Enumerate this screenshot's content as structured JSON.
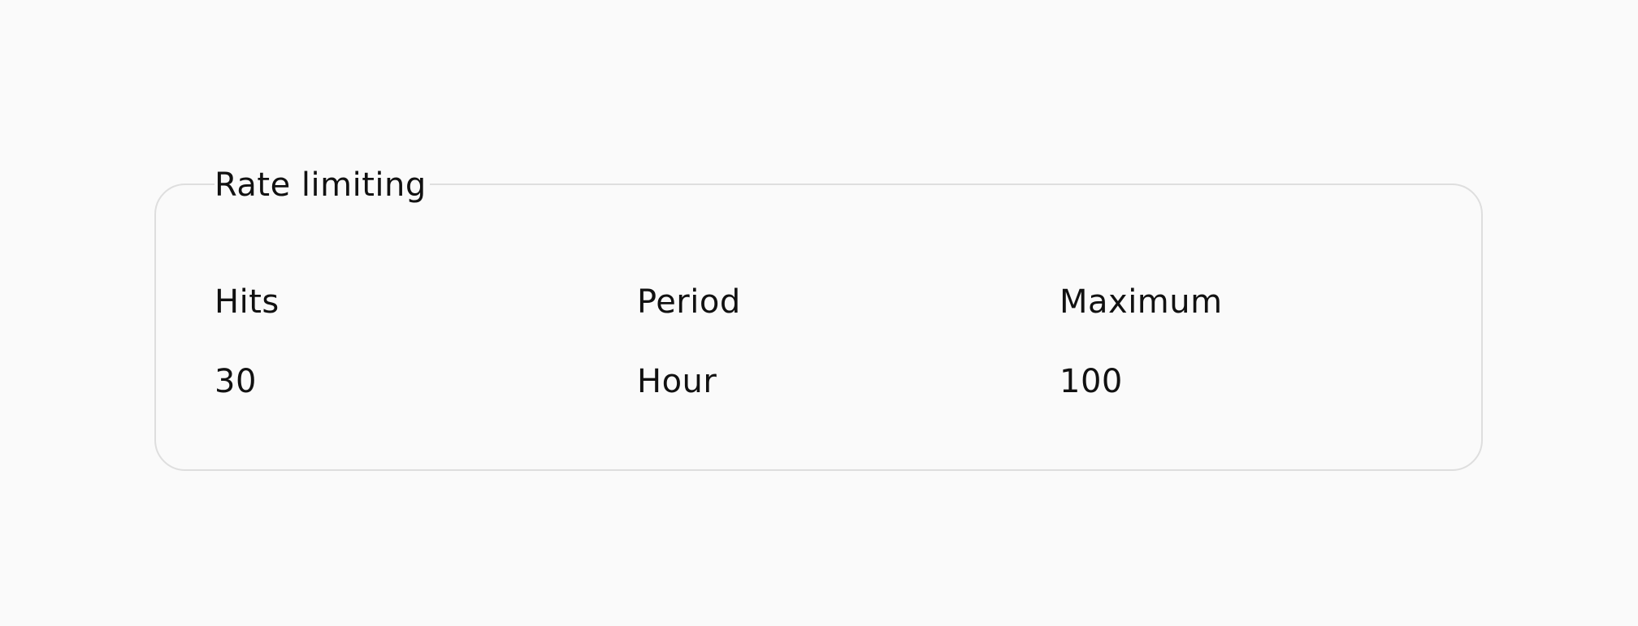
{
  "section": {
    "title": "Rate limiting",
    "columns": [
      {
        "label": "Hits",
        "value": "30"
      },
      {
        "label": "Period",
        "value": "Hour"
      },
      {
        "label": "Maximum",
        "value": "100"
      }
    ]
  },
  "colors": {
    "background": "#fafafa",
    "border": "#dedede",
    "text": "#111111"
  }
}
